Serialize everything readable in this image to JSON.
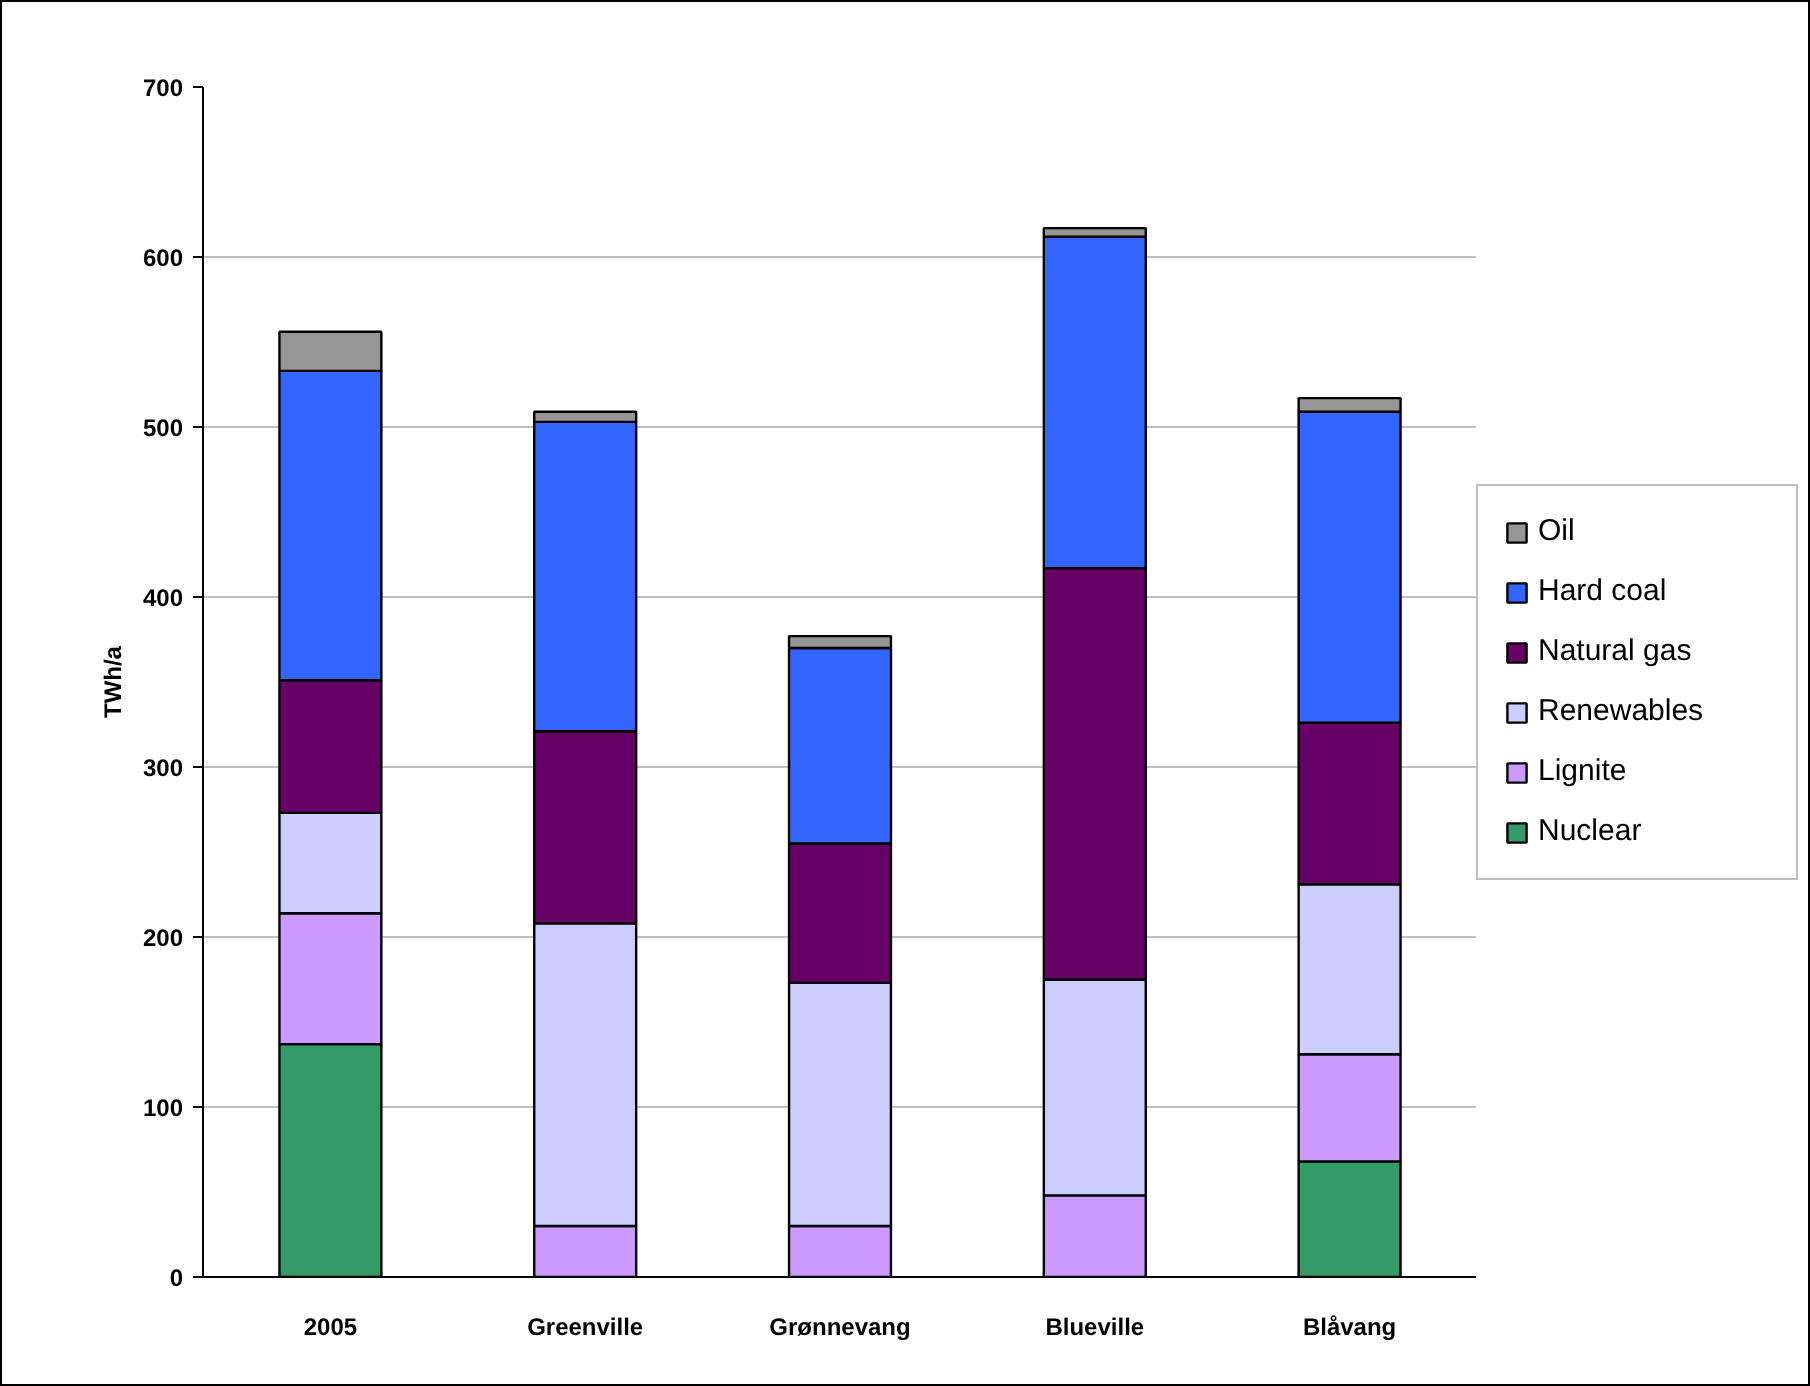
{
  "chart_data": {
    "type": "bar",
    "stacked": true,
    "ylabel": "TWh/a",
    "categories": [
      "2005",
      "Greenville",
      "Grønnevang",
      "Blueville",
      "Blåvang"
    ],
    "series": [
      {
        "name": "Nuclear",
        "color": "#339966",
        "values": [
          137,
          null,
          null,
          null,
          68
        ]
      },
      {
        "name": "Lignite",
        "color": "#cc99ff",
        "values": [
          77,
          30,
          30,
          48,
          63
        ]
      },
      {
        "name": "Renewables",
        "color": "#ccccff",
        "values": [
          59,
          178,
          143,
          127,
          100
        ]
      },
      {
        "name": "Natural gas",
        "color": "#660066",
        "values": [
          78,
          113,
          82,
          242,
          95
        ]
      },
      {
        "name": "Hard coal",
        "color": "#3366ff",
        "values": [
          182,
          182,
          115,
          195,
          183
        ]
      },
      {
        "name": "Oil",
        "color": "#969696",
        "values": [
          23,
          6,
          7,
          5,
          8
        ]
      }
    ],
    "ylim": [
      0,
      700
    ],
    "yticks": [
      0,
      100,
      200,
      300,
      400,
      500,
      600,
      700
    ],
    "grid": "y",
    "legend": "right"
  }
}
